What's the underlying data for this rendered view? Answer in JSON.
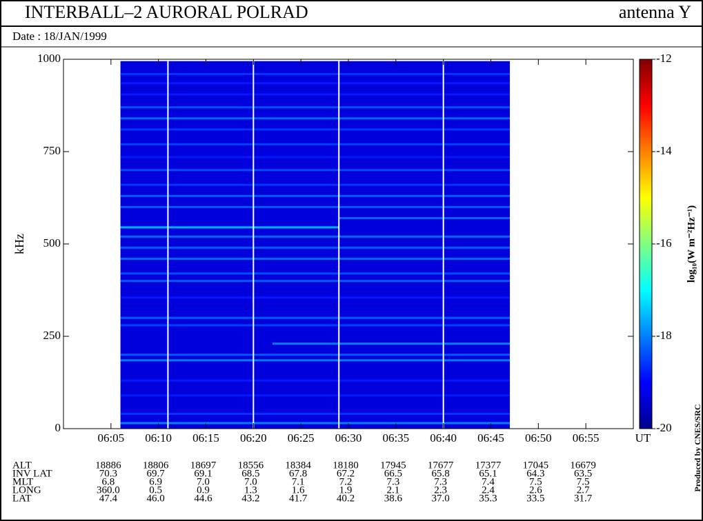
{
  "chart_data": {
    "type": "spectrogram",
    "title": "INTERBALL–2 AURORAL POLRAD",
    "subtitle": "antenna Y",
    "date": "Date : 18/JAN/1999",
    "y_label": "kHz",
    "x_label": "UT",
    "colorbar_label": "log₁₀(W m⁻²Hz⁻¹)",
    "credit": "Produced by CNES/SRC",
    "xlim": [
      "06:00",
      "07:00"
    ],
    "xticks": [
      "06:05",
      "06:10",
      "06:15",
      "06:20",
      "06:25",
      "06:30",
      "06:35",
      "06:40",
      "06:45",
      "06:50",
      "06:55"
    ],
    "ylim": [
      0,
      1000
    ],
    "yticks": [
      0,
      250,
      500,
      750,
      1000
    ],
    "clim": [
      -20,
      -12
    ],
    "cticks": [
      -12,
      -14,
      -16,
      -18,
      -20
    ],
    "colormap": [
      "#00008f",
      "#0000ff",
      "#0080ff",
      "#00ffff",
      "#80ff80",
      "#ffff00",
      "#ff8000",
      "#ff0000",
      "#800000"
    ],
    "spectrogram": {
      "start": "06:06",
      "end": "06:47",
      "fmax": 995,
      "background": -19.3,
      "gaps": [
        "06:11",
        "06:20",
        "06:29",
        "06:40"
      ],
      "bands": [
        {
          "freq": 960,
          "level": -18.6
        },
        {
          "freq": 935,
          "level": -18.8
        },
        {
          "freq": 905,
          "level": -18.8
        },
        {
          "freq": 870,
          "level": -18.4
        },
        {
          "freq": 840,
          "level": -18.2
        },
        {
          "freq": 810,
          "level": -18.6
        },
        {
          "freq": 770,
          "level": -18.5
        },
        {
          "freq": 735,
          "level": -18.8
        },
        {
          "freq": 700,
          "level": -18.4
        },
        {
          "freq": 660,
          "level": -18.6
        },
        {
          "freq": 630,
          "level": -18.3
        },
        {
          "freq": 600,
          "level": -18.3
        },
        {
          "freq": 570,
          "level": -18.2,
          "start": "06:29"
        },
        {
          "freq": 545,
          "level": -17.6,
          "end": "06:29"
        },
        {
          "freq": 520,
          "level": -18.2
        },
        {
          "freq": 490,
          "level": -18.3
        },
        {
          "freq": 460,
          "level": -18.2
        },
        {
          "freq": 420,
          "level": -18.4
        },
        {
          "freq": 400,
          "level": -18.3
        },
        {
          "freq": 355,
          "level": -18.8
        },
        {
          "freq": 300,
          "level": -18.3
        },
        {
          "freq": 280,
          "level": -18.5
        },
        {
          "freq": 230,
          "level": -18.0,
          "start": "06:22"
        },
        {
          "freq": 200,
          "level": -18.3
        },
        {
          "freq": 185,
          "level": -18.0
        },
        {
          "freq": 130,
          "level": -18.8
        },
        {
          "freq": 90,
          "level": -18.8
        },
        {
          "freq": 40,
          "level": -18.6
        },
        {
          "freq": 15,
          "level": -18.0
        }
      ]
    },
    "ephemeris": {
      "labels": [
        "ALT",
        "INV LAT",
        "MLT",
        "LONG",
        "LAT"
      ],
      "rows": [
        [
          "18886",
          "18806",
          "18697",
          "18556",
          "18384",
          "18180",
          "17945",
          "17677",
          "17377",
          "17045",
          "16679"
        ],
        [
          "70.3",
          "69.7",
          "69.1",
          "68.5",
          "67.8",
          "67.2",
          "66.5",
          "65.8",
          "65.1",
          "64.3",
          "63.5"
        ],
        [
          "6.8",
          "6.9",
          "7.0",
          "7.0",
          "7.1",
          "7.2",
          "7.3",
          "7.3",
          "7.4",
          "7.5",
          "7.5"
        ],
        [
          "360.0",
          "0.5",
          "0.9",
          "1.3",
          "1.6",
          "1.9",
          "2.1",
          "2.3",
          "2.4",
          "2.6",
          "2.7"
        ],
        [
          "47.4",
          "46.0",
          "44.6",
          "43.2",
          "41.7",
          "40.2",
          "38.6",
          "37.0",
          "35.3",
          "33.5",
          "31.7"
        ]
      ]
    }
  }
}
